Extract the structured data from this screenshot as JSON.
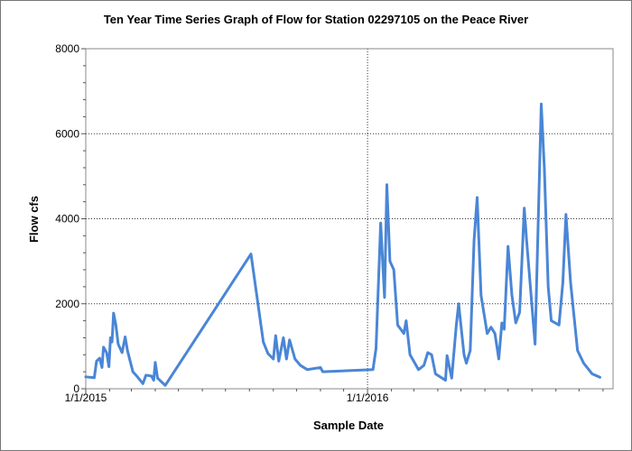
{
  "chart_data": {
    "type": "line",
    "title": "Ten Year Time Series Graph of Flow for Station 02297105 on the Peace River",
    "xlabel": "Sample Date",
    "ylabel": "Flow cfs",
    "ylim": [
      0,
      8000
    ],
    "xlim": [
      "2015-01-01",
      "2016-11-14"
    ],
    "grid": true,
    "legend": "none",
    "line_color": "#4a86d6",
    "y_ticks": [
      "0",
      "2000",
      "4000",
      "6000",
      "8000"
    ],
    "x_ticks": [
      {
        "date": "2015-01-01",
        "label": "1/1/2015"
      },
      {
        "date": "2016-01-01",
        "label": "1/1/2016"
      }
    ],
    "series": [
      {
        "points": [
          [
            "2015-01-01",
            280
          ],
          [
            "2015-01-12",
            260
          ],
          [
            "2015-01-15",
            650
          ],
          [
            "2015-01-19",
            720
          ],
          [
            "2015-01-22",
            500
          ],
          [
            "2015-01-24",
            980
          ],
          [
            "2015-01-28",
            850
          ],
          [
            "2015-01-31",
            520
          ],
          [
            "2015-02-02",
            1200
          ],
          [
            "2015-02-04",
            1100
          ],
          [
            "2015-02-06",
            1780
          ],
          [
            "2015-02-09",
            1500
          ],
          [
            "2015-02-12",
            1050
          ],
          [
            "2015-02-17",
            850
          ],
          [
            "2015-02-21",
            1220
          ],
          [
            "2015-02-24",
            900
          ],
          [
            "2015-03-03",
            400
          ],
          [
            "2015-03-08",
            300
          ],
          [
            "2015-03-16",
            120
          ],
          [
            "2015-03-20",
            320
          ],
          [
            "2015-03-27",
            300
          ],
          [
            "2015-03-30",
            200
          ],
          [
            "2015-04-01",
            620
          ],
          [
            "2015-04-04",
            250
          ],
          [
            "2015-04-14",
            80
          ],
          [
            "2015-08-03",
            3170
          ],
          [
            "2015-08-19",
            1100
          ],
          [
            "2015-08-25",
            830
          ],
          [
            "2015-09-01",
            700
          ],
          [
            "2015-09-04",
            1250
          ],
          [
            "2015-09-08",
            650
          ],
          [
            "2015-09-14",
            1200
          ],
          [
            "2015-09-18",
            700
          ],
          [
            "2015-09-22",
            1150
          ],
          [
            "2015-09-29",
            700
          ],
          [
            "2015-10-06",
            550
          ],
          [
            "2015-10-15",
            450
          ],
          [
            "2015-11-01",
            500
          ],
          [
            "2015-11-04",
            400
          ],
          [
            "2016-01-08",
            450
          ],
          [
            "2016-01-12",
            950
          ],
          [
            "2016-01-18",
            3900
          ],
          [
            "2016-01-23",
            2150
          ],
          [
            "2016-01-26",
            4800
          ],
          [
            "2016-01-30",
            3000
          ],
          [
            "2016-02-04",
            2800
          ],
          [
            "2016-02-09",
            1500
          ],
          [
            "2016-02-17",
            1300
          ],
          [
            "2016-02-20",
            1600
          ],
          [
            "2016-02-25",
            800
          ],
          [
            "2016-03-07",
            450
          ],
          [
            "2016-03-14",
            550
          ],
          [
            "2016-03-19",
            850
          ],
          [
            "2016-03-24",
            800
          ],
          [
            "2016-03-29",
            350
          ],
          [
            "2016-04-11",
            200
          ],
          [
            "2016-04-13",
            780
          ],
          [
            "2016-04-19",
            250
          ],
          [
            "2016-04-25",
            1500
          ],
          [
            "2016-04-28",
            2000
          ],
          [
            "2016-05-05",
            800
          ],
          [
            "2016-05-08",
            600
          ],
          [
            "2016-05-13",
            900
          ],
          [
            "2016-05-18",
            3500
          ],
          [
            "2016-05-22",
            4500
          ],
          [
            "2016-05-27",
            2200
          ],
          [
            "2016-06-04",
            1300
          ],
          [
            "2016-06-09",
            1450
          ],
          [
            "2016-06-14",
            1300
          ],
          [
            "2016-06-19",
            700
          ],
          [
            "2016-06-23",
            1550
          ],
          [
            "2016-06-26",
            1400
          ],
          [
            "2016-07-01",
            3350
          ],
          [
            "2016-07-06",
            2200
          ],
          [
            "2016-07-11",
            1550
          ],
          [
            "2016-07-16",
            1800
          ],
          [
            "2016-07-22",
            4250
          ],
          [
            "2016-07-25",
            3500
          ],
          [
            "2016-08-05",
            1050
          ],
          [
            "2016-08-13",
            6700
          ],
          [
            "2016-08-17",
            5200
          ],
          [
            "2016-08-22",
            2400
          ],
          [
            "2016-08-26",
            1600
          ],
          [
            "2016-09-05",
            1500
          ],
          [
            "2016-09-10",
            2500
          ],
          [
            "2016-09-14",
            4100
          ],
          [
            "2016-09-20",
            2500
          ],
          [
            "2016-09-29",
            900
          ],
          [
            "2016-10-07",
            600
          ],
          [
            "2016-10-18",
            350
          ],
          [
            "2016-10-28",
            270
          ]
        ]
      }
    ]
  }
}
